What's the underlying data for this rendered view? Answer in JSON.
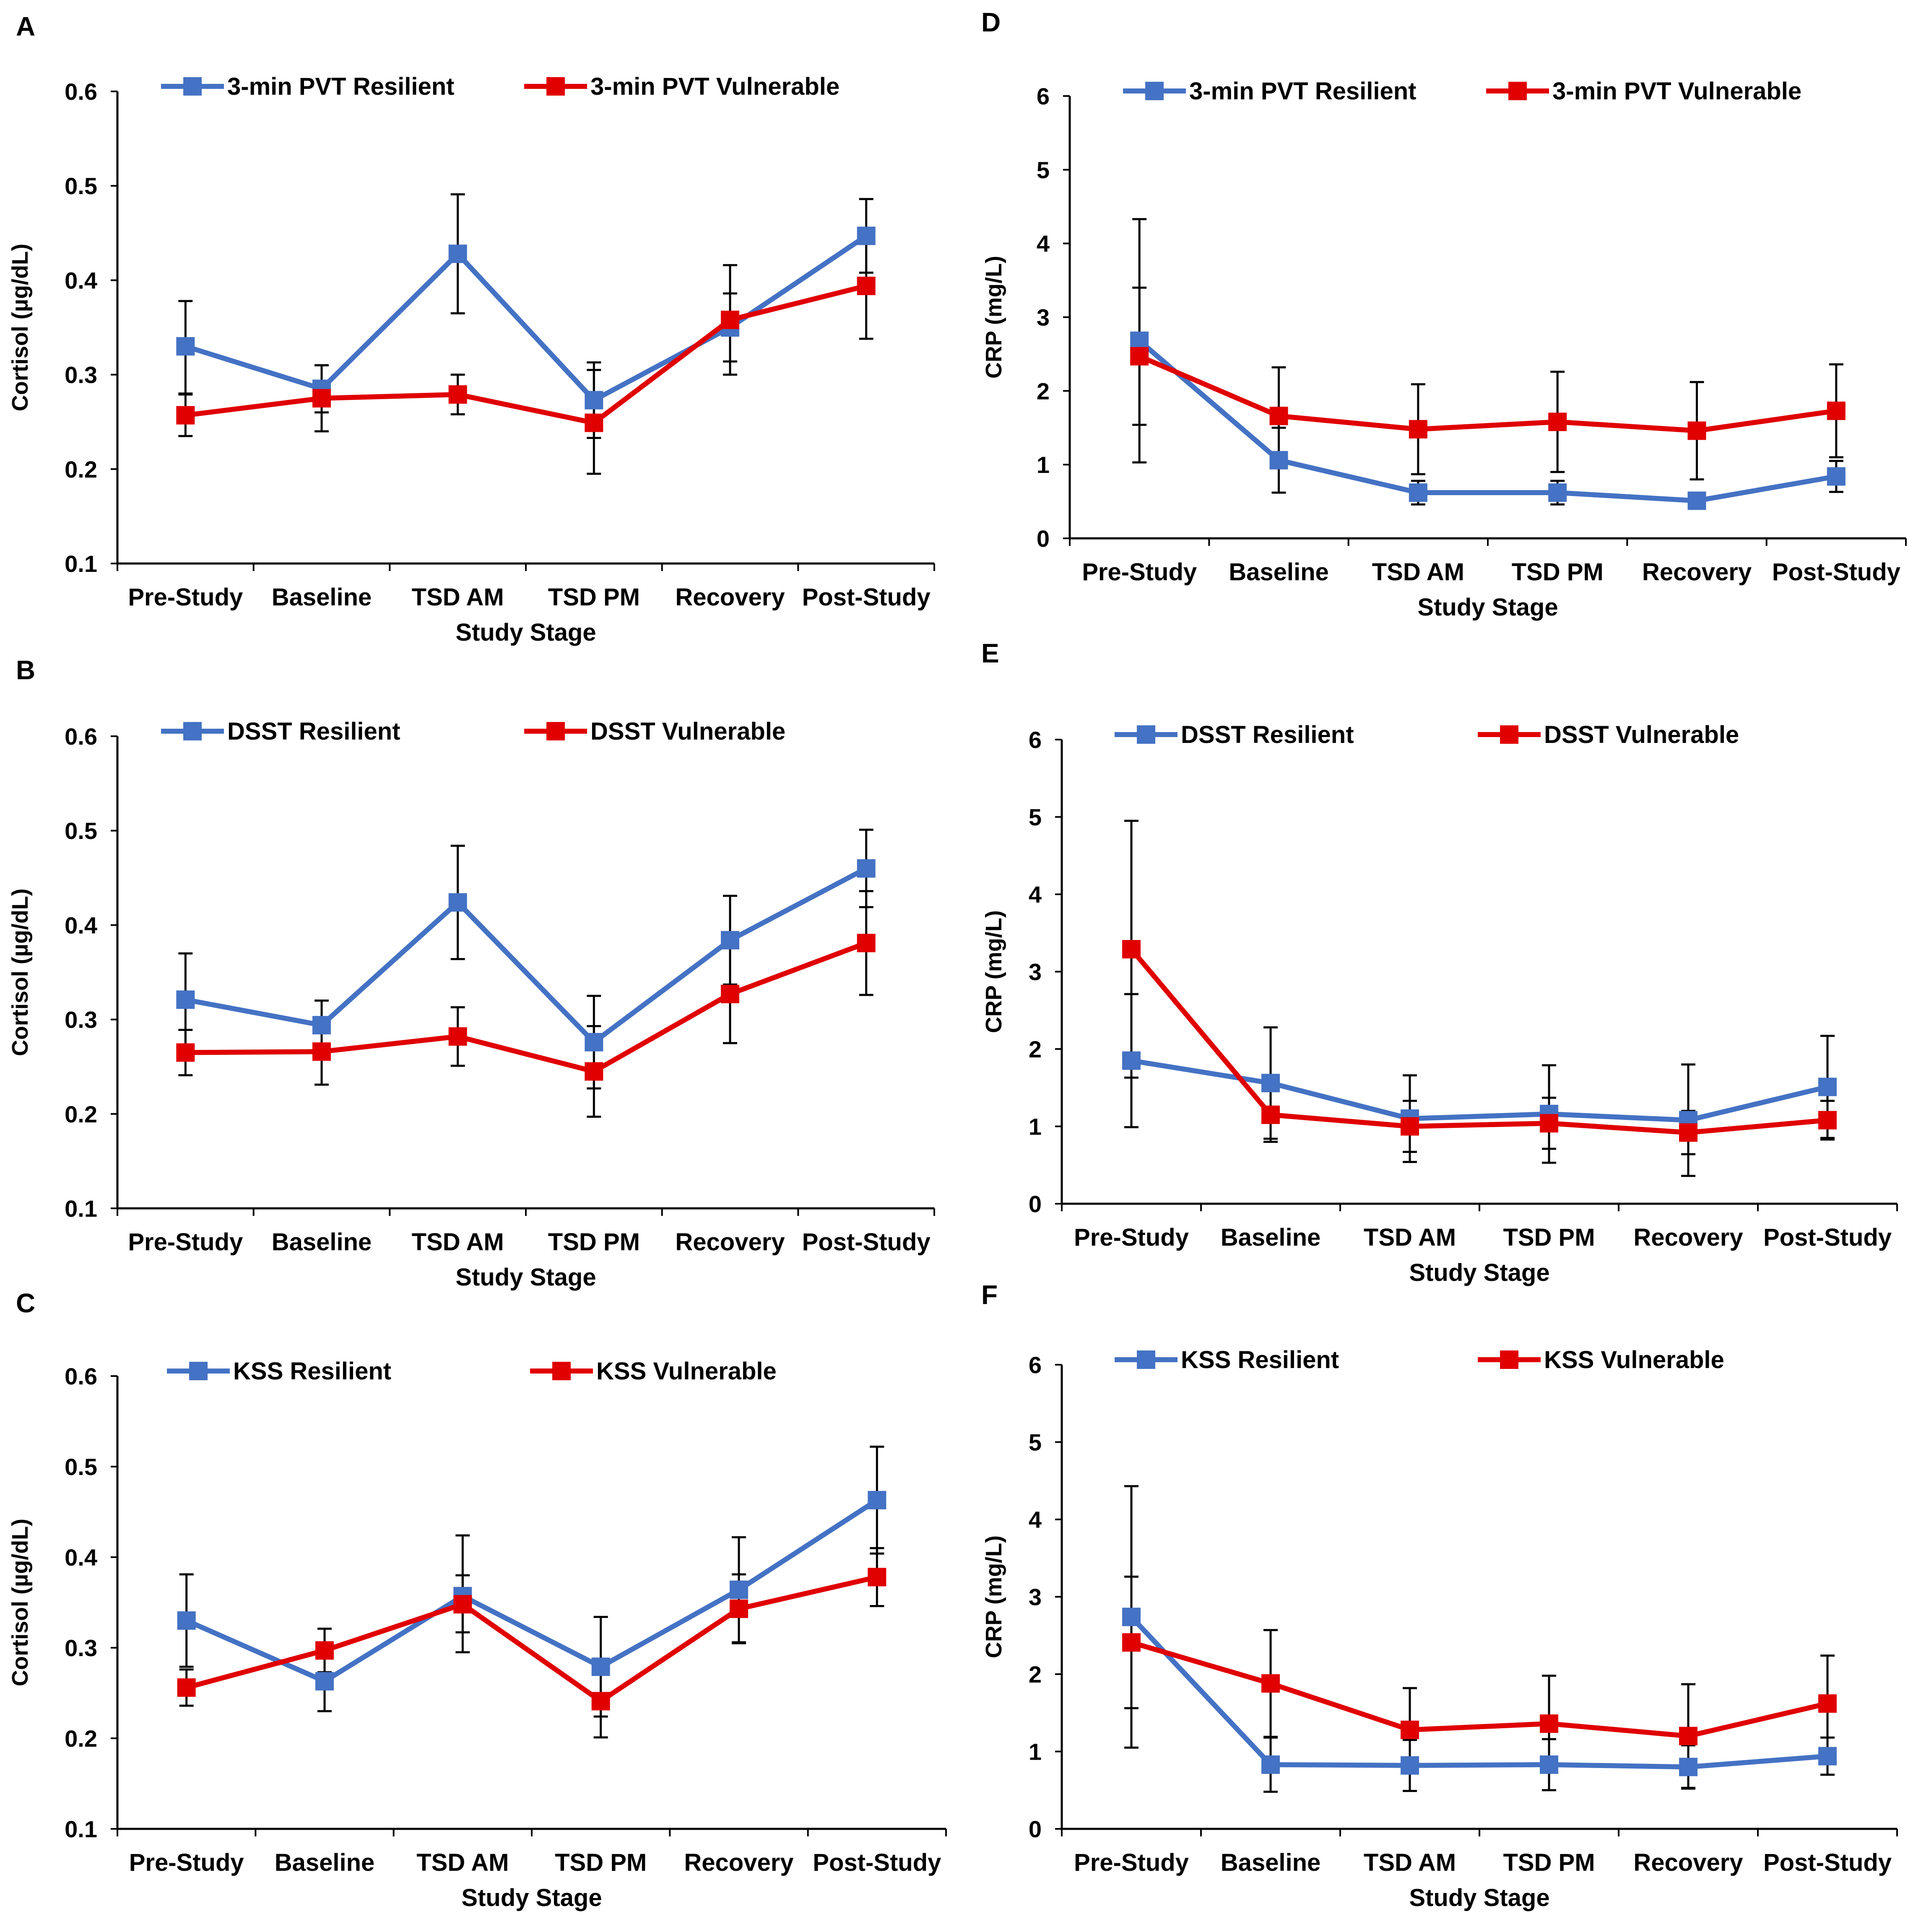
{
  "figure": {
    "colors": {
      "resilient": "#4472C4",
      "vulnerable": "#E00000",
      "axis": "#000000",
      "error": "#000000"
    }
  },
  "chart_data": [
    {
      "panel": "A",
      "type": "line",
      "title": "",
      "xlabel": "Study Stage",
      "ylabel": "Cortisol (µg/dL)",
      "ylim": [
        0.1,
        0.6
      ],
      "yticks": [
        "0.1",
        "0.2",
        "0.3",
        "0.4",
        "0.5",
        "0.6"
      ],
      "grid": false,
      "legend": "top",
      "categories": [
        "Pre-Study",
        "Baseline",
        "TSD AM",
        "TSD PM",
        "Recovery",
        "Post-Study"
      ],
      "series": [
        {
          "name": "3-min PVT Resilient",
          "color": "#4472C4",
          "values": [
            0.33,
            0.285,
            0.428,
            0.273,
            0.35,
            0.447
          ],
          "err_hi": [
            0.378,
            0.31,
            0.491,
            0.313,
            0.386,
            0.486
          ],
          "err_lo": [
            0.28,
            0.26,
            0.365,
            0.233,
            0.314,
            0.408
          ]
        },
        {
          "name": "3-min PVT Vulnerable",
          "color": "#E00000",
          "values": [
            0.257,
            0.275,
            0.279,
            0.249,
            0.358,
            0.394
          ],
          "err_hi": [
            0.279,
            0.31,
            0.3,
            0.305,
            0.416,
            0.45
          ],
          "err_lo": [
            0.235,
            0.24,
            0.258,
            0.195,
            0.3,
            0.338
          ]
        }
      ]
    },
    {
      "panel": "B",
      "type": "line",
      "title": "",
      "xlabel": "Study Stage",
      "ylabel": "Cortisol (µg/dL)",
      "ylim": [
        0.1,
        0.6
      ],
      "yticks": [
        "0.1",
        "0.2",
        "0.3",
        "0.4",
        "0.5",
        "0.6"
      ],
      "grid": false,
      "legend": "top",
      "categories": [
        "Pre-Study",
        "Baseline",
        "TSD AM",
        "TSD PM",
        "Recovery",
        "Post-Study"
      ],
      "series": [
        {
          "name": "DSST Resilient",
          "color": "#4472C4",
          "values": [
            0.321,
            0.294,
            0.424,
            0.276,
            0.384,
            0.46
          ],
          "err_hi": [
            0.37,
            0.32,
            0.484,
            0.325,
            0.431,
            0.501
          ],
          "err_lo": [
            0.272,
            0.268,
            0.364,
            0.227,
            0.337,
            0.419
          ]
        },
        {
          "name": "DSST Vulnerable",
          "color": "#E00000",
          "values": [
            0.265,
            0.266,
            0.282,
            0.245,
            0.327,
            0.381
          ],
          "err_hi": [
            0.289,
            0.301,
            0.313,
            0.293,
            0.379,
            0.436
          ],
          "err_lo": [
            0.241,
            0.231,
            0.251,
            0.197,
            0.275,
            0.326
          ]
        }
      ]
    },
    {
      "panel": "C",
      "type": "line",
      "title": "",
      "xlabel": "Study Stage",
      "ylabel": "Cortisol (µg/dL)",
      "ylim": [
        0.1,
        0.6
      ],
      "yticks": [
        "0.1",
        "0.2",
        "0.3",
        "0.4",
        "0.5",
        "0.6"
      ],
      "grid": false,
      "legend": "top",
      "categories": [
        "Pre-Study",
        "Baseline",
        "TSD AM",
        "TSD PM",
        "Recovery",
        "Post-Study"
      ],
      "series": [
        {
          "name": "KSS Resilient",
          "color": "#4472C4",
          "values": [
            0.33,
            0.263,
            0.357,
            0.279,
            0.364,
            0.463
          ],
          "err_hi": [
            0.381,
            0.296,
            0.424,
            0.334,
            0.422,
            0.522
          ],
          "err_lo": [
            0.279,
            0.23,
            0.317,
            0.224,
            0.306,
            0.404
          ]
        },
        {
          "name": "KSS Vulnerable",
          "color": "#E00000",
          "values": [
            0.256,
            0.297,
            0.348,
            0.241,
            0.343,
            0.378
          ],
          "err_hi": [
            0.276,
            0.321,
            0.38,
            0.281,
            0.381,
            0.41
          ],
          "err_lo": [
            0.236,
            0.273,
            0.295,
            0.201,
            0.305,
            0.346
          ]
        }
      ]
    },
    {
      "panel": "D",
      "type": "line",
      "title": "",
      "xlabel": "Study Stage",
      "ylabel": "CRP (mg/L)",
      "ylim": [
        0,
        6
      ],
      "yticks": [
        "0",
        "1",
        "2",
        "3",
        "4",
        "5",
        "6"
      ],
      "grid": false,
      "legend": "top",
      "categories": [
        "Pre-Study",
        "Baseline",
        "TSD AM",
        "TSD PM",
        "Recovery",
        "Post-Study"
      ],
      "series": [
        {
          "name": "3-min PVT Resilient",
          "color": "#4472C4",
          "values": [
            2.68,
            1.06,
            0.62,
            0.62,
            0.51,
            0.84
          ],
          "err_hi": [
            4.33,
            1.5,
            0.78,
            0.78,
            0.6,
            1.05
          ],
          "err_lo": [
            1.03,
            0.62,
            0.46,
            0.46,
            0.42,
            0.63
          ]
        },
        {
          "name": "3-min PVT Vulnerable",
          "color": "#E00000",
          "values": [
            2.47,
            1.66,
            1.48,
            1.58,
            1.46,
            1.73
          ],
          "err_hi": [
            3.4,
            2.32,
            2.09,
            2.26,
            2.12,
            2.36
          ],
          "err_lo": [
            1.54,
            1.0,
            0.87,
            0.9,
            0.8,
            1.1
          ]
        }
      ]
    },
    {
      "panel": "E",
      "type": "line",
      "title": "",
      "xlabel": "Study Stage",
      "ylabel": "CRP (mg/L)",
      "ylim": [
        0,
        6
      ],
      "yticks": [
        "0",
        "1",
        "2",
        "3",
        "4",
        "5",
        "6"
      ],
      "grid": false,
      "legend": "top",
      "categories": [
        "Pre-Study",
        "Baseline",
        "TSD AM",
        "TSD PM",
        "Recovery",
        "Post-Study"
      ],
      "series": [
        {
          "name": "DSST Resilient",
          "color": "#4472C4",
          "values": [
            1.85,
            1.56,
            1.1,
            1.16,
            1.08,
            1.51
          ],
          "err_hi": [
            2.71,
            2.28,
            1.66,
            1.79,
            1.8,
            2.17
          ],
          "err_lo": [
            0.99,
            0.84,
            0.54,
            0.53,
            0.36,
            0.85
          ]
        },
        {
          "name": "DSST Vulnerable",
          "color": "#E00000",
          "values": [
            3.29,
            1.15,
            1.0,
            1.04,
            0.92,
            1.08
          ],
          "err_hi": [
            4.95,
            1.5,
            1.33,
            1.37,
            1.2,
            1.33
          ],
          "err_lo": [
            1.63,
            0.8,
            0.67,
            0.71,
            0.64,
            0.83
          ]
        }
      ]
    },
    {
      "panel": "F",
      "type": "line",
      "title": "",
      "xlabel": "Study Stage",
      "ylabel": "CRP (mg/L)",
      "ylim": [
        0,
        6
      ],
      "yticks": [
        "0",
        "1",
        "2",
        "3",
        "4",
        "5",
        "6"
      ],
      "grid": false,
      "legend": "top",
      "categories": [
        "Pre-Study",
        "Baseline",
        "TSD AM",
        "TSD PM",
        "Recovery",
        "Post-Study"
      ],
      "series": [
        {
          "name": "KSS Resilient",
          "color": "#4472C4",
          "values": [
            2.74,
            0.83,
            0.82,
            0.83,
            0.8,
            0.94
          ],
          "err_hi": [
            4.43,
            1.18,
            1.15,
            1.16,
            1.08,
            1.18
          ],
          "err_lo": [
            1.05,
            0.48,
            0.49,
            0.5,
            0.52,
            0.7
          ]
        },
        {
          "name": "KSS Vulnerable",
          "color": "#E00000",
          "values": [
            2.41,
            1.88,
            1.28,
            1.36,
            1.2,
            1.62
          ],
          "err_hi": [
            3.26,
            2.57,
            1.82,
            1.98,
            1.87,
            2.24
          ],
          "err_lo": [
            1.56,
            1.19,
            0.74,
            0.74,
            0.53,
            1.0
          ]
        }
      ]
    }
  ]
}
